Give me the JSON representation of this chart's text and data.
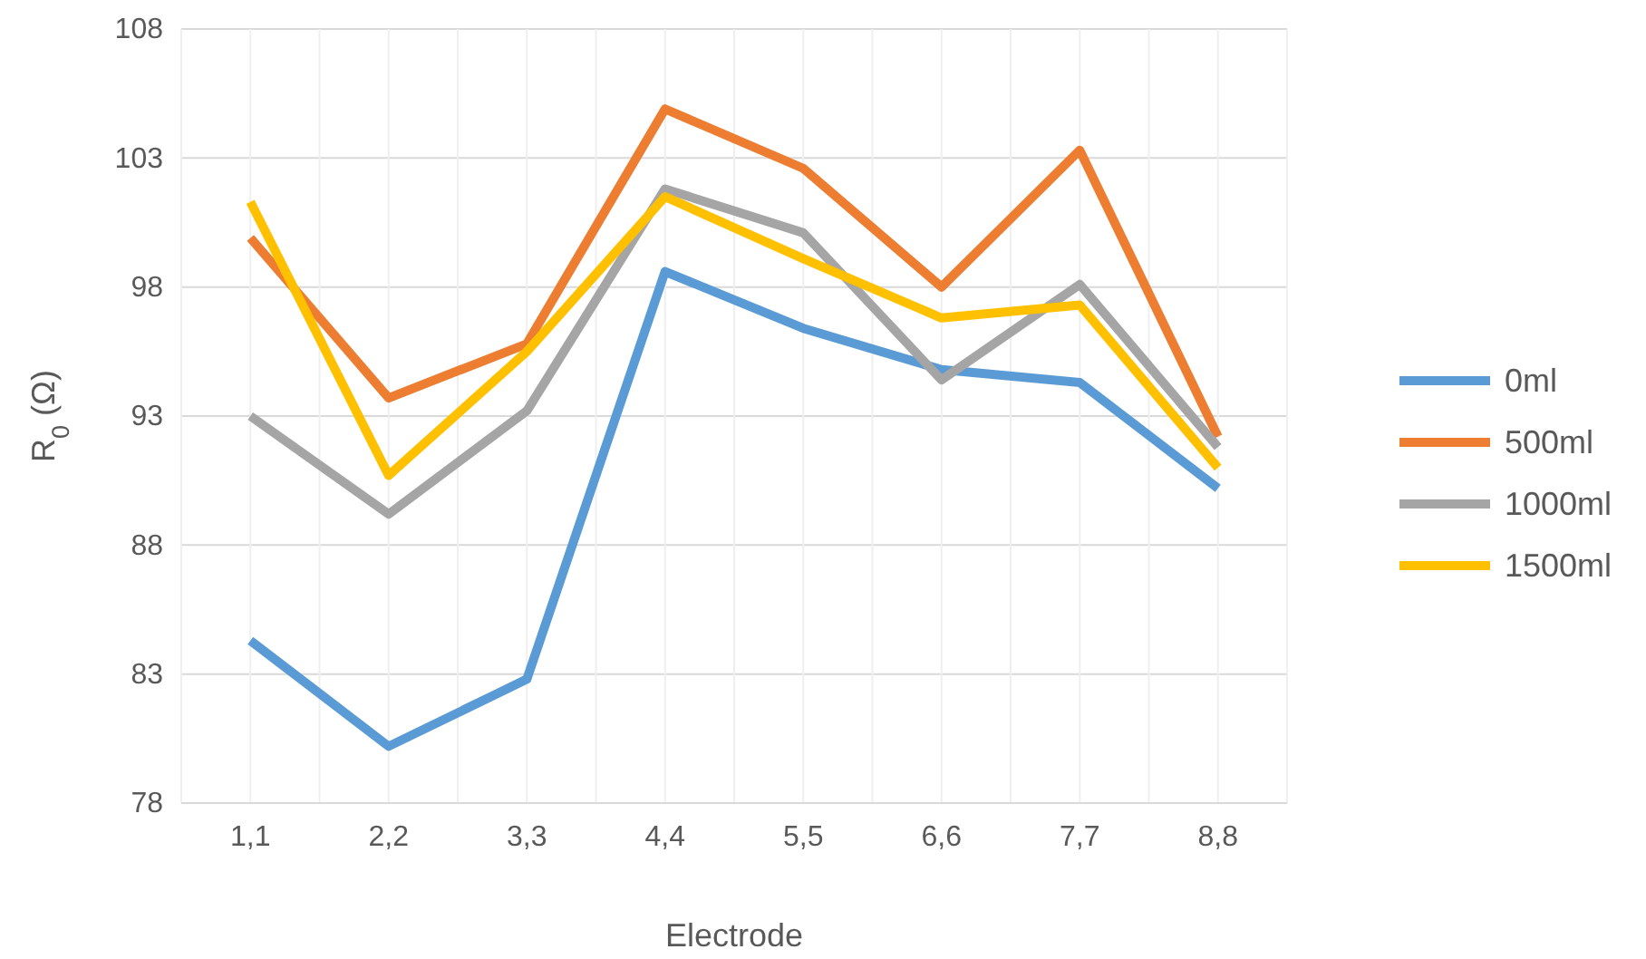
{
  "chart_data": {
    "type": "line",
    "xlabel": "Electrode",
    "ylabel": "R$_{0}$ (Ω)",
    "categories": [
      "1,1",
      "2,2",
      "3,3",
      "4,4",
      "5,5",
      "6,6",
      "7,7",
      "8,8"
    ],
    "ylim": [
      78,
      108
    ],
    "yticks": [
      78,
      83,
      88,
      93,
      98,
      103,
      108
    ],
    "grid": true,
    "legend": "right",
    "marker": "none",
    "line_style": "solid",
    "series": [
      {
        "name": "0ml",
        "color": "#5b9bd5",
        "values": [
          84.3,
          80.2,
          82.8,
          98.6,
          96.4,
          94.8,
          94.3,
          90.2
        ]
      },
      {
        "name": "500ml",
        "color": "#ed7d31",
        "values": [
          99.9,
          93.7,
          95.8,
          104.9,
          102.6,
          98.0,
          103.3,
          92.2
        ]
      },
      {
        "name": "1000ml",
        "color": "#a5a5a5",
        "values": [
          93.0,
          89.2,
          93.2,
          101.8,
          100.1,
          94.4,
          98.1,
          91.8
        ]
      },
      {
        "name": "1500ml",
        "color": "#ffc000",
        "values": [
          101.3,
          90.7,
          95.5,
          101.5,
          99.1,
          96.8,
          97.3,
          91.0
        ]
      }
    ]
  }
}
